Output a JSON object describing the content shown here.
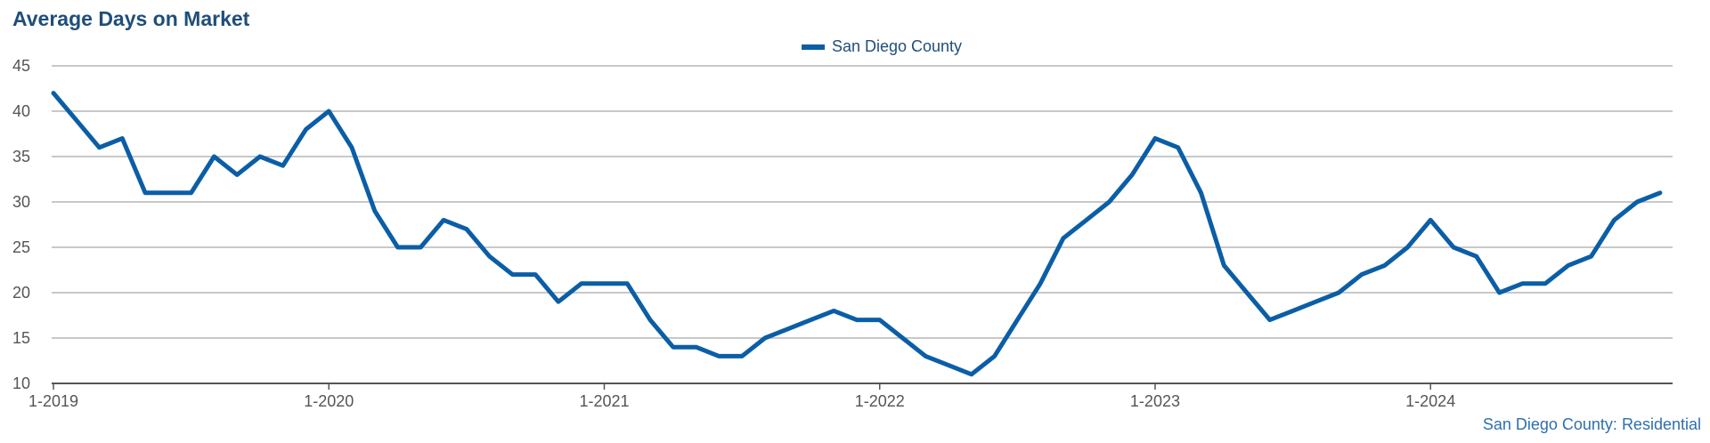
{
  "chart_data": {
    "type": "line",
    "title": "Average Days on Market",
    "xlabel": "",
    "ylabel": "",
    "ylim": [
      10,
      45
    ],
    "yticks": [
      10,
      15,
      20,
      25,
      30,
      35,
      40,
      45
    ],
    "xtick_labels": [
      "1-2019",
      "1-2020",
      "1-2021",
      "1-2022",
      "1-2023",
      "1-2024"
    ],
    "grid": true,
    "legend_position": "top-center",
    "series_color": "#0b5ea6",
    "series": [
      {
        "name": "San Diego County",
        "x": [
          "2019-01",
          "2019-02",
          "2019-03",
          "2019-04",
          "2019-05",
          "2019-06",
          "2019-07",
          "2019-08",
          "2019-09",
          "2019-10",
          "2019-11",
          "2019-12",
          "2020-01",
          "2020-02",
          "2020-03",
          "2020-04",
          "2020-05",
          "2020-06",
          "2020-07",
          "2020-08",
          "2020-09",
          "2020-10",
          "2020-11",
          "2020-12",
          "2021-01",
          "2021-02",
          "2021-03",
          "2021-04",
          "2021-05",
          "2021-06",
          "2021-07",
          "2021-08",
          "2021-09",
          "2021-10",
          "2021-11",
          "2021-12",
          "2022-01",
          "2022-02",
          "2022-03",
          "2022-04",
          "2022-05",
          "2022-06",
          "2022-07",
          "2022-08",
          "2022-09",
          "2022-10",
          "2022-11",
          "2022-12",
          "2023-01",
          "2023-02",
          "2023-03",
          "2023-04",
          "2023-05",
          "2023-06",
          "2023-07",
          "2023-08",
          "2023-09",
          "2023-10",
          "2023-11",
          "2023-12",
          "2024-01",
          "2024-02",
          "2024-03",
          "2024-04",
          "2024-05",
          "2024-06",
          "2024-07",
          "2024-08",
          "2024-09",
          "2024-10",
          "2024-11"
        ],
        "values": [
          42,
          39,
          36,
          37,
          31,
          31,
          31,
          35,
          33,
          35,
          34,
          38,
          40,
          36,
          29,
          25,
          25,
          28,
          27,
          24,
          22,
          22,
          19,
          21,
          21,
          21,
          17,
          14,
          14,
          13,
          13,
          15,
          16,
          17,
          18,
          17,
          17,
          15,
          13,
          12,
          11,
          13,
          17,
          21,
          26,
          28,
          30,
          33,
          37,
          36,
          31,
          23,
          20,
          17,
          18,
          19,
          20,
          22,
          23,
          25,
          28,
          25,
          24,
          20,
          21,
          21,
          23,
          24,
          28,
          30,
          31
        ]
      }
    ],
    "footer_note": "San Diego County: Residential"
  }
}
